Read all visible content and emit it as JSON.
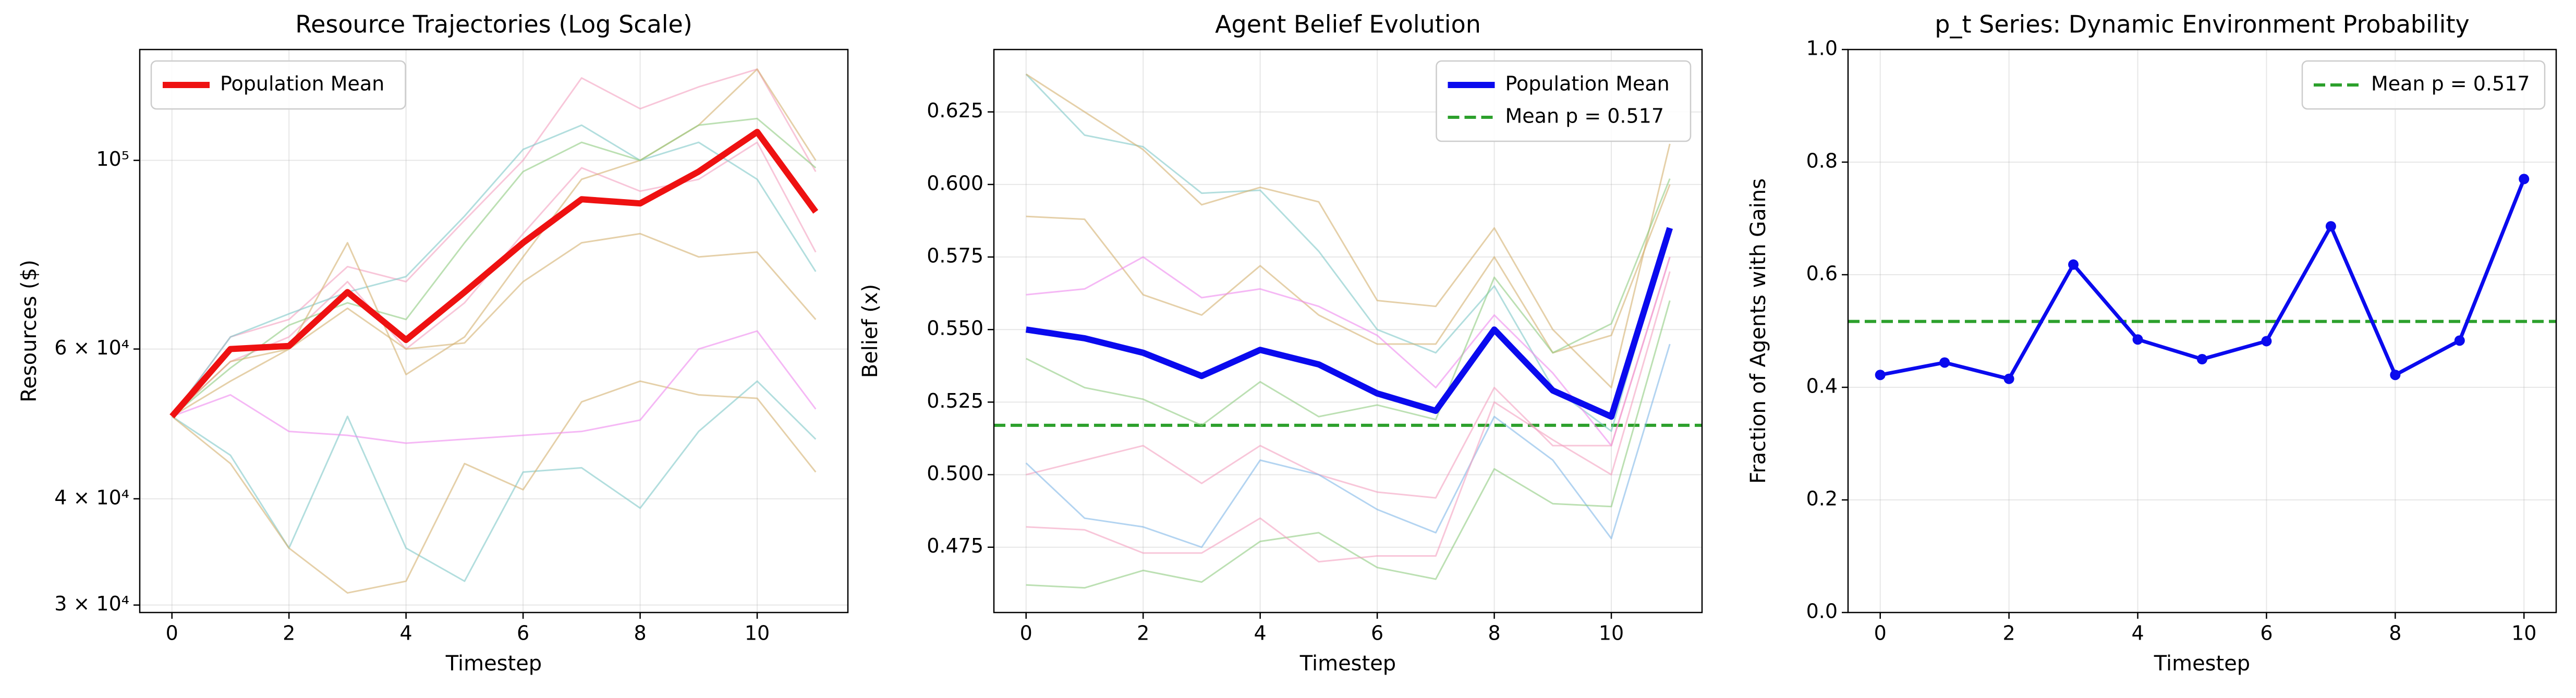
{
  "chart_data": [
    {
      "type": "line",
      "title": "Resource Trajectories (Log Scale)",
      "xlabel": "Timestep",
      "ylabel": "Resources ($)",
      "log_y": true,
      "grid": true,
      "legend": "upper left",
      "x": [
        0,
        1,
        2,
        3,
        4,
        5,
        6,
        7,
        8,
        9,
        10,
        11
      ],
      "xlim": [
        -0.55,
        11.55
      ],
      "xticks": [
        0,
        2,
        4,
        6,
        8,
        10
      ],
      "ylim": [
        29400,
        135000
      ],
      "yticks": [
        {
          "value": 30000,
          "label": "3 × 10⁴"
        },
        {
          "value": 40000,
          "label": "4 × 10⁴"
        },
        {
          "value": 60000,
          "label": "6 × 10⁴"
        },
        {
          "value": 100000,
          "label": "10⁵"
        }
      ],
      "series": [
        {
          "color": "#f4a0c0",
          "values": [
            50000,
            58000,
            62000,
            72000,
            60000,
            68000,
            82000,
            98000,
            92000,
            95000,
            105000,
            78000
          ]
        },
        {
          "color": "#7fc8c8",
          "values": [
            50000,
            45000,
            35000,
            50000,
            35000,
            32000,
            43000,
            43500,
            39000,
            48000,
            55000,
            47000
          ]
        },
        {
          "color": "#d4b070",
          "values": [
            50000,
            44000,
            35000,
            31000,
            32000,
            44000,
            41000,
            52000,
            55000,
            53000,
            52500,
            43000
          ]
        },
        {
          "color": "#ee88ee",
          "values": [
            50000,
            53000,
            48000,
            47500,
            46500,
            47000,
            47500,
            48000,
            49500,
            60000,
            63000,
            51000
          ]
        },
        {
          "color": "#f4a0c0",
          "values": [
            50000,
            62000,
            65000,
            75000,
            72000,
            85000,
            100000,
            125000,
            115000,
            122000,
            128000,
            97000
          ]
        },
        {
          "color": "#7fc8c8",
          "values": [
            50000,
            62000,
            66000,
            70000,
            73000,
            86000,
            103000,
            110000,
            100000,
            105000,
            95000,
            74000
          ]
        },
        {
          "color": "#d4b070",
          "values": [
            50000,
            55000,
            60000,
            80000,
            56000,
            62000,
            77000,
            95000,
            100000,
            110000,
            128000,
            100000
          ]
        },
        {
          "color": "#90cc80",
          "values": [
            50000,
            57000,
            64000,
            68000,
            65000,
            80000,
            97000,
            105000,
            100000,
            110000,
            112000,
            98000
          ]
        },
        {
          "color": "#d4b070",
          "values": [
            50000,
            58000,
            60000,
            67000,
            60000,
            61000,
            72000,
            80000,
            82000,
            77000,
            78000,
            65000
          ]
        },
        {
          "name": "Population Mean",
          "color": "#ee1111",
          "values": [
            50000,
            60000,
            60500,
            70000,
            61500,
            70000,
            80000,
            90000,
            89000,
            97000,
            108000,
            87000
          ]
        }
      ]
    },
    {
      "type": "line",
      "title": "Agent Belief Evolution",
      "xlabel": "Timestep",
      "ylabel": "Belief (x)",
      "grid": true,
      "legend": "upper right",
      "x": [
        0,
        1,
        2,
        3,
        4,
        5,
        6,
        7,
        8,
        9,
        10,
        11
      ],
      "xlim": [
        -0.55,
        11.55
      ],
      "xticks": [
        0,
        2,
        4,
        6,
        8,
        10
      ],
      "ylim": [
        0.4525,
        0.6465
      ],
      "yticks": [
        {
          "value": 0.475,
          "label": "0.475"
        },
        {
          "value": 0.5,
          "label": "0.500"
        },
        {
          "value": 0.525,
          "label": "0.525"
        },
        {
          "value": 0.55,
          "label": "0.550"
        },
        {
          "value": 0.575,
          "label": "0.575"
        },
        {
          "value": 0.6,
          "label": "0.600"
        },
        {
          "value": 0.625,
          "label": "0.625"
        }
      ],
      "series": [
        {
          "color": "#7fc8c8",
          "values": [
            0.638,
            0.617,
            0.613,
            0.597,
            0.598,
            0.577,
            0.55,
            0.542,
            0.565,
            0.53,
            0.515,
            0.585
          ]
        },
        {
          "color": "#d4b070",
          "values": [
            0.638,
            0.625,
            0.612,
            0.593,
            0.599,
            0.594,
            0.56,
            0.558,
            0.585,
            0.55,
            0.53,
            0.614
          ]
        },
        {
          "color": "#d4b070",
          "values": [
            0.589,
            0.588,
            0.562,
            0.555,
            0.572,
            0.555,
            0.545,
            0.545,
            0.575,
            0.542,
            0.548,
            0.6
          ]
        },
        {
          "color": "#ee88ee",
          "values": [
            0.562,
            0.564,
            0.575,
            0.561,
            0.564,
            0.558,
            0.548,
            0.53,
            0.555,
            0.535,
            0.51,
            0.575
          ]
        },
        {
          "color": "#90cc80",
          "values": [
            0.54,
            0.53,
            0.526,
            0.517,
            0.532,
            0.52,
            0.524,
            0.519,
            0.568,
            0.542,
            0.552,
            0.602
          ]
        },
        {
          "color": "#f4a0c0",
          "values": [
            0.5,
            0.505,
            0.51,
            0.497,
            0.51,
            0.5,
            0.494,
            0.492,
            0.53,
            0.51,
            0.51,
            0.575
          ]
        },
        {
          "color": "#80b8e8",
          "values": [
            0.504,
            0.485,
            0.482,
            0.475,
            0.505,
            0.5,
            0.488,
            0.48,
            0.52,
            0.505,
            0.478,
            0.545
          ]
        },
        {
          "color": "#90cc80",
          "values": [
            0.462,
            0.461,
            0.467,
            0.463,
            0.477,
            0.48,
            0.468,
            0.464,
            0.502,
            0.49,
            0.489,
            0.56
          ]
        },
        {
          "color": "#f4a0c0",
          "values": [
            0.482,
            0.481,
            0.473,
            0.473,
            0.485,
            0.47,
            0.472,
            0.472,
            0.525,
            0.512,
            0.5,
            0.57
          ]
        },
        {
          "name": "Population Mean",
          "color": "#0a0aee",
          "values": [
            0.55,
            0.547,
            0.542,
            0.534,
            0.543,
            0.538,
            0.528,
            0.522,
            0.55,
            0.529,
            0.52,
            0.585
          ]
        }
      ],
      "hlines": [
        {
          "name": "Mean p = 0.517",
          "value": 0.517,
          "color": "#2ca02c"
        }
      ]
    },
    {
      "type": "line",
      "title": "p_t Series: Dynamic Environment Probability",
      "xlabel": "Timestep",
      "ylabel": "Fraction of Agents with Gains",
      "grid": true,
      "legend": "upper right",
      "markers": true,
      "x": [
        0,
        1,
        2,
        3,
        4,
        5,
        6,
        7,
        8,
        9,
        10
      ],
      "xlim": [
        -0.5,
        10.5
      ],
      "xticks": [
        0,
        2,
        4,
        6,
        8,
        10
      ],
      "ylim": [
        0,
        1
      ],
      "yticks": [
        {
          "value": 0,
          "label": "0.0"
        },
        {
          "value": 0.2,
          "label": "0.2"
        },
        {
          "value": 0.4,
          "label": "0.4"
        },
        {
          "value": 0.6,
          "label": "0.6"
        },
        {
          "value": 0.8,
          "label": "0.8"
        },
        {
          "value": 1,
          "label": "1.0"
        }
      ],
      "series": [
        {
          "color": "#0a0aee",
          "values": [
            0.422,
            0.444,
            0.415,
            0.618,
            0.485,
            0.45,
            0.482,
            0.686,
            0.422,
            0.483,
            0.77
          ]
        }
      ],
      "hlines": [
        {
          "name": "Mean p = 0.517",
          "value": 0.517,
          "color": "#2ca02c"
        }
      ]
    }
  ]
}
